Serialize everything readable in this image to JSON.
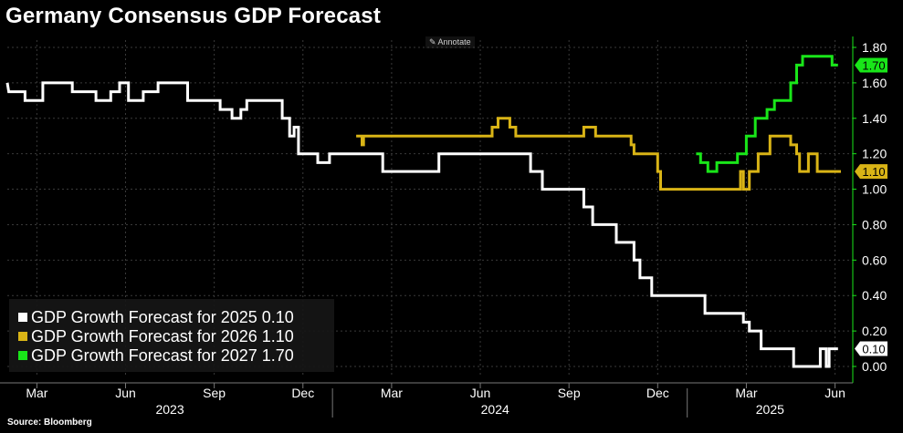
{
  "title": "Germany Consensus GDP Forecast",
  "annotate_label": "Annotate",
  "source": "Source: Bloomberg",
  "legend": [
    {
      "label": "GDP Growth Forecast for 2025",
      "value": "0.10",
      "color": "#ffffff"
    },
    {
      "label": "GDP Growth Forecast for 2026",
      "value": "1.10",
      "color": "#d9b416"
    },
    {
      "label": "GDP Growth Forecast for 2027",
      "value": "1.70",
      "color": "#19e619"
    }
  ],
  "chart_data": {
    "type": "line",
    "title": "Germany Consensus GDP Forecast",
    "x_unit": "months since Feb 2023 (0 = start of Feb 2023)",
    "xlim": [
      0,
      28.6
    ],
    "ylim": [
      0.0,
      1.8
    ],
    "y_ticks": [
      "0.00",
      "0.20",
      "0.40",
      "0.60",
      "0.80",
      "1.00",
      "1.20",
      "1.40",
      "1.60",
      "1.80"
    ],
    "y_axis_color": "#19e619",
    "month_ticks": [
      {
        "label": "Mar",
        "x": 1.0
      },
      {
        "label": "Jun",
        "x": 4.0
      },
      {
        "label": "Sep",
        "x": 7.0
      },
      {
        "label": "Dec",
        "x": 10.0
      },
      {
        "label": "Mar",
        "x": 13.0
      },
      {
        "label": "Jun",
        "x": 16.0
      },
      {
        "label": "Sep",
        "x": 19.0
      },
      {
        "label": "Dec",
        "x": 22.0
      },
      {
        "label": "Mar",
        "x": 25.0
      },
      {
        "label": "Jun",
        "x": 28.0
      }
    ],
    "year_labels": [
      {
        "label": "2023",
        "x": 5.5
      },
      {
        "label": "2024",
        "x": 16.5
      },
      {
        "label": "2025",
        "x": 25.8
      }
    ],
    "year_dividers": [
      11.0,
      23.0
    ],
    "series": [
      {
        "name": "GDP Growth Forecast for 2025",
        "color": "#ffffff",
        "last_value": "0.10",
        "points": [
          [
            0.0,
            1.6
          ],
          [
            0.05,
            1.55
          ],
          [
            0.6,
            1.55
          ],
          [
            0.6,
            1.5
          ],
          [
            1.2,
            1.5
          ],
          [
            1.2,
            1.6
          ],
          [
            2.2,
            1.6
          ],
          [
            2.2,
            1.55
          ],
          [
            3.0,
            1.55
          ],
          [
            3.0,
            1.5
          ],
          [
            3.5,
            1.5
          ],
          [
            3.5,
            1.55
          ],
          [
            3.8,
            1.55
          ],
          [
            3.8,
            1.6
          ],
          [
            4.1,
            1.6
          ],
          [
            4.1,
            1.5
          ],
          [
            4.6,
            1.5
          ],
          [
            4.6,
            1.55
          ],
          [
            5.1,
            1.55
          ],
          [
            5.1,
            1.6
          ],
          [
            6.1,
            1.6
          ],
          [
            6.1,
            1.5
          ],
          [
            7.2,
            1.5
          ],
          [
            7.2,
            1.45
          ],
          [
            7.6,
            1.45
          ],
          [
            7.6,
            1.4
          ],
          [
            7.9,
            1.4
          ],
          [
            7.9,
            1.45
          ],
          [
            8.1,
            1.45
          ],
          [
            8.1,
            1.5
          ],
          [
            9.3,
            1.5
          ],
          [
            9.3,
            1.4
          ],
          [
            9.55,
            1.4
          ],
          [
            9.55,
            1.3
          ],
          [
            9.7,
            1.3
          ],
          [
            9.7,
            1.35
          ],
          [
            9.85,
            1.35
          ],
          [
            9.85,
            1.2
          ],
          [
            10.5,
            1.2
          ],
          [
            10.5,
            1.15
          ],
          [
            10.9,
            1.15
          ],
          [
            10.9,
            1.2
          ],
          [
            12.7,
            1.2
          ],
          [
            12.7,
            1.1
          ],
          [
            14.6,
            1.1
          ],
          [
            14.6,
            1.2
          ],
          [
            17.7,
            1.2
          ],
          [
            17.7,
            1.1
          ],
          [
            18.1,
            1.1
          ],
          [
            18.1,
            1.0
          ],
          [
            19.5,
            1.0
          ],
          [
            19.5,
            0.9
          ],
          [
            19.8,
            0.9
          ],
          [
            19.8,
            0.8
          ],
          [
            20.6,
            0.8
          ],
          [
            20.6,
            0.7
          ],
          [
            21.2,
            0.7
          ],
          [
            21.2,
            0.6
          ],
          [
            21.4,
            0.6
          ],
          [
            21.4,
            0.5
          ],
          [
            21.8,
            0.5
          ],
          [
            21.8,
            0.4
          ],
          [
            23.6,
            0.4
          ],
          [
            23.6,
            0.3
          ],
          [
            24.9,
            0.3
          ],
          [
            24.9,
            0.25
          ],
          [
            25.1,
            0.25
          ],
          [
            25.1,
            0.2
          ],
          [
            25.5,
            0.2
          ],
          [
            25.5,
            0.1
          ],
          [
            26.6,
            0.1
          ],
          [
            26.6,
            0.0
          ],
          [
            27.5,
            0.0
          ],
          [
            27.5,
            0.1
          ],
          [
            27.7,
            0.1
          ],
          [
            27.7,
            0.0
          ],
          [
            27.8,
            0.0
          ],
          [
            27.8,
            0.1
          ],
          [
            28.1,
            0.1
          ]
        ]
      },
      {
        "name": "GDP Growth Forecast for 2026",
        "color": "#d9b416",
        "last_value": "1.10",
        "points": [
          [
            11.8,
            1.3
          ],
          [
            12.0,
            1.3
          ],
          [
            12.0,
            1.25
          ],
          [
            12.05,
            1.25
          ],
          [
            12.05,
            1.3
          ],
          [
            16.4,
            1.3
          ],
          [
            16.4,
            1.35
          ],
          [
            16.6,
            1.35
          ],
          [
            16.6,
            1.4
          ],
          [
            17.0,
            1.4
          ],
          [
            17.0,
            1.35
          ],
          [
            17.2,
            1.35
          ],
          [
            17.2,
            1.3
          ],
          [
            19.5,
            1.3
          ],
          [
            19.5,
            1.35
          ],
          [
            19.9,
            1.35
          ],
          [
            19.9,
            1.3
          ],
          [
            21.1,
            1.3
          ],
          [
            21.1,
            1.25
          ],
          [
            21.2,
            1.25
          ],
          [
            21.2,
            1.2
          ],
          [
            22.0,
            1.2
          ],
          [
            22.0,
            1.1
          ],
          [
            22.1,
            1.1
          ],
          [
            22.1,
            1.0
          ],
          [
            24.8,
            1.0
          ],
          [
            24.8,
            1.1
          ],
          [
            24.9,
            1.1
          ],
          [
            24.9,
            1.0
          ],
          [
            25.1,
            1.0
          ],
          [
            25.1,
            1.1
          ],
          [
            25.4,
            1.1
          ],
          [
            25.4,
            1.2
          ],
          [
            25.8,
            1.2
          ],
          [
            25.8,
            1.3
          ],
          [
            26.5,
            1.3
          ],
          [
            26.5,
            1.25
          ],
          [
            26.7,
            1.25
          ],
          [
            26.7,
            1.2
          ],
          [
            26.8,
            1.2
          ],
          [
            26.8,
            1.1
          ],
          [
            27.1,
            1.1
          ],
          [
            27.1,
            1.2
          ],
          [
            27.4,
            1.2
          ],
          [
            27.4,
            1.1
          ],
          [
            28.2,
            1.1
          ]
        ]
      },
      {
        "name": "GDP Growth Forecast for 2027",
        "color": "#19e619",
        "last_value": "1.70",
        "points": [
          [
            23.3,
            1.2
          ],
          [
            23.45,
            1.2
          ],
          [
            23.45,
            1.15
          ],
          [
            23.7,
            1.15
          ],
          [
            23.7,
            1.1
          ],
          [
            24.0,
            1.1
          ],
          [
            24.0,
            1.15
          ],
          [
            24.7,
            1.15
          ],
          [
            24.7,
            1.2
          ],
          [
            25.0,
            1.2
          ],
          [
            25.0,
            1.3
          ],
          [
            25.3,
            1.3
          ],
          [
            25.3,
            1.4
          ],
          [
            25.7,
            1.4
          ],
          [
            25.7,
            1.45
          ],
          [
            25.95,
            1.45
          ],
          [
            25.95,
            1.5
          ],
          [
            26.5,
            1.5
          ],
          [
            26.5,
            1.6
          ],
          [
            26.7,
            1.6
          ],
          [
            26.7,
            1.7
          ],
          [
            26.9,
            1.7
          ],
          [
            26.9,
            1.75
          ],
          [
            27.9,
            1.75
          ],
          [
            27.9,
            1.7
          ],
          [
            28.1,
            1.7
          ]
        ]
      }
    ]
  }
}
